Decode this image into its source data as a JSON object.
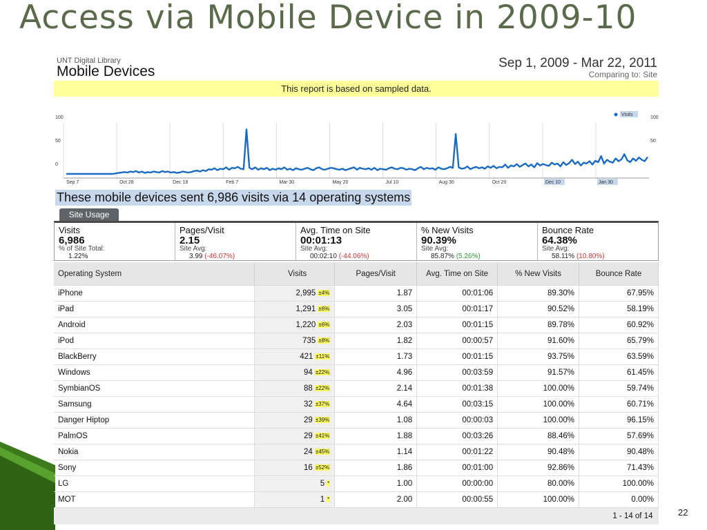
{
  "slide": {
    "title": "Access via Mobile Device in 2009-10",
    "page_number": "22"
  },
  "report": {
    "library": "UNT Digital Library",
    "title": "Mobile Devices",
    "date_range": "Sep 1, 2009 - Mar 22, 2011",
    "comparing": "Comparing to: Site",
    "sampled_notice": "This report is based on sampled data.",
    "legend_label": "Visits",
    "headline": "These mobile devices sent 6,986 visits via 14 operating systems",
    "tab_label": "Site Usage",
    "pagination": "1 - 14 of 14",
    "accent_color": "#1a6bbf",
    "metrics": [
      {
        "title": "Visits",
        "value": "6,986",
        "sub1": "% of Site Total:",
        "sub2": "1.22%",
        "sub2_delta": ""
      },
      {
        "title": "Pages/Visit",
        "value": "2.15",
        "sub1": "Site Avg:",
        "sub2": "3.99",
        "sub2_delta": "(-46.07%)",
        "delta_sign": "neg"
      },
      {
        "title": "Avg. Time on Site",
        "value": "00:01:13",
        "sub1": "Site Avg:",
        "sub2": "00:02:10",
        "sub2_delta": "(-44.06%)",
        "delta_sign": "neg"
      },
      {
        "title": "% New Visits",
        "value": "90.39%",
        "sub1": "Site Avg:",
        "sub2": "85.87%",
        "sub2_delta": "(5.26%)",
        "delta_sign": "pos"
      },
      {
        "title": "Bounce Rate",
        "value": "64.38%",
        "sub1": "Site Avg:",
        "sub2": "58.11%",
        "sub2_delta": "(10.80%)",
        "delta_sign": "neg"
      }
    ],
    "columns": [
      "Operating System",
      "Visits",
      "Pages/Visit",
      "Avg. Time on Site",
      "% New Visits",
      "Bounce Rate"
    ],
    "rows": [
      {
        "os": "iPhone",
        "visits": "2,995",
        "pct": "±4%",
        "ppv": "1.87",
        "time": "00:01:06",
        "new": "89.30%",
        "bounce": "67.95%"
      },
      {
        "os": "iPad",
        "visits": "1,291",
        "pct": "±6%",
        "ppv": "3.05",
        "time": "00:01:17",
        "new": "90.52%",
        "bounce": "58.19%"
      },
      {
        "os": "Android",
        "visits": "1,220",
        "pct": "±6%",
        "ppv": "2.03",
        "time": "00:01:15",
        "new": "89.78%",
        "bounce": "60.92%"
      },
      {
        "os": "iPod",
        "visits": "735",
        "pct": "±8%",
        "ppv": "1.82",
        "time": "00:00:57",
        "new": "91.60%",
        "bounce": "65.79%"
      },
      {
        "os": "BlackBerry",
        "visits": "421",
        "pct": "±11%",
        "ppv": "1.73",
        "time": "00:01:15",
        "new": "93.75%",
        "bounce": "63.59%"
      },
      {
        "os": "Windows",
        "visits": "94",
        "pct": "±22%",
        "ppv": "4.96",
        "time": "00:03:59",
        "new": "91.57%",
        "bounce": "61.45%"
      },
      {
        "os": "SymbianOS",
        "visits": "88",
        "pct": "±22%",
        "ppv": "2.14",
        "time": "00:01:38",
        "new": "100.00%",
        "bounce": "59.74%"
      },
      {
        "os": "Samsung",
        "visits": "32",
        "pct": "±37%",
        "ppv": "4.64",
        "time": "00:03:15",
        "new": "100.00%",
        "bounce": "60.71%"
      },
      {
        "os": "Danger Hiptop",
        "visits": "29",
        "pct": "±39%",
        "ppv": "1.08",
        "time": "00:00:03",
        "new": "100.00%",
        "bounce": "96.15%"
      },
      {
        "os": "PalmOS",
        "visits": "29",
        "pct": "±41%",
        "ppv": "1.88",
        "time": "00:03:26",
        "new": "88.46%",
        "bounce": "57.69%"
      },
      {
        "os": "Nokia",
        "visits": "24",
        "pct": "±45%",
        "ppv": "1.14",
        "time": "00:01:22",
        "new": "90.48%",
        "bounce": "90.48%"
      },
      {
        "os": "Sony",
        "visits": "16",
        "pct": "±52%",
        "ppv": "1.86",
        "time": "00:01:00",
        "new": "92.86%",
        "bounce": "71.43%"
      },
      {
        "os": "LG",
        "visits": "5",
        "pct": "*",
        "ppv": "1.00",
        "time": "00:00:00",
        "new": "80.00%",
        "bounce": "100.00%"
      },
      {
        "os": "MOT",
        "visits": "1",
        "pct": "*",
        "ppv": "2.00",
        "time": "00:00:55",
        "new": "100.00%",
        "bounce": "0.00%"
      }
    ]
  },
  "chart_data": {
    "type": "line",
    "ylim": [
      0,
      100
    ],
    "y_ticks_left": [
      "100",
      "50",
      "0"
    ],
    "y_ticks_right": [
      "100",
      "50"
    ],
    "x_tick_labels": [
      "Sep 7",
      "Oct 28",
      "Dec 18",
      "Feb 7",
      "Mar 30",
      "May 20",
      "Jul 10",
      "Aug 30",
      "Oct 20",
      "Dec 10",
      "Jan 30"
    ],
    "grid": true,
    "legend": "top-right",
    "series": [
      {
        "name": "Visits",
        "values": [
          0,
          0,
          0,
          0,
          0,
          0,
          0,
          0,
          0,
          0,
          0,
          0,
          0,
          0,
          0,
          0,
          0,
          1,
          2,
          3,
          4,
          3,
          5,
          4,
          6,
          3,
          5,
          2,
          4,
          3,
          5,
          4,
          3,
          6,
          4,
          5,
          3,
          4,
          2,
          3,
          5,
          4,
          3,
          4,
          6,
          7,
          5,
          8,
          6,
          10,
          9,
          12,
          8,
          11,
          10,
          14,
          9,
          13,
          12,
          15,
          11,
          10,
          95,
          13,
          10,
          14,
          9,
          12,
          10,
          13,
          8,
          11,
          9,
          12,
          10,
          14,
          9,
          11,
          8,
          12,
          10,
          9,
          11,
          13,
          10,
          8,
          12,
          14,
          10,
          9,
          11,
          13,
          12,
          10,
          9,
          11,
          8,
          10,
          12,
          14,
          9,
          13,
          11,
          10,
          12,
          9,
          13,
          8,
          11,
          10,
          9,
          12,
          14,
          11,
          10,
          13,
          12,
          9,
          11,
          10,
          8,
          12,
          15,
          10,
          13,
          11,
          12,
          9,
          14,
          11,
          10,
          12,
          15,
          13,
          85,
          14,
          11,
          12,
          16,
          10,
          13,
          15,
          12,
          14,
          11,
          16,
          13,
          17,
          12,
          15,
          14,
          20,
          13,
          18,
          16,
          21,
          15,
          19,
          22,
          16,
          20,
          14,
          23,
          18,
          21,
          19,
          17,
          24,
          20,
          22,
          16,
          25,
          19,
          23,
          30,
          21,
          26,
          18,
          24,
          22,
          27,
          20,
          28,
          25,
          38,
          22,
          30,
          26,
          24,
          33,
          27,
          31,
          42,
          29,
          25,
          33,
          28,
          35,
          30,
          27,
          36
        ]
      }
    ]
  }
}
